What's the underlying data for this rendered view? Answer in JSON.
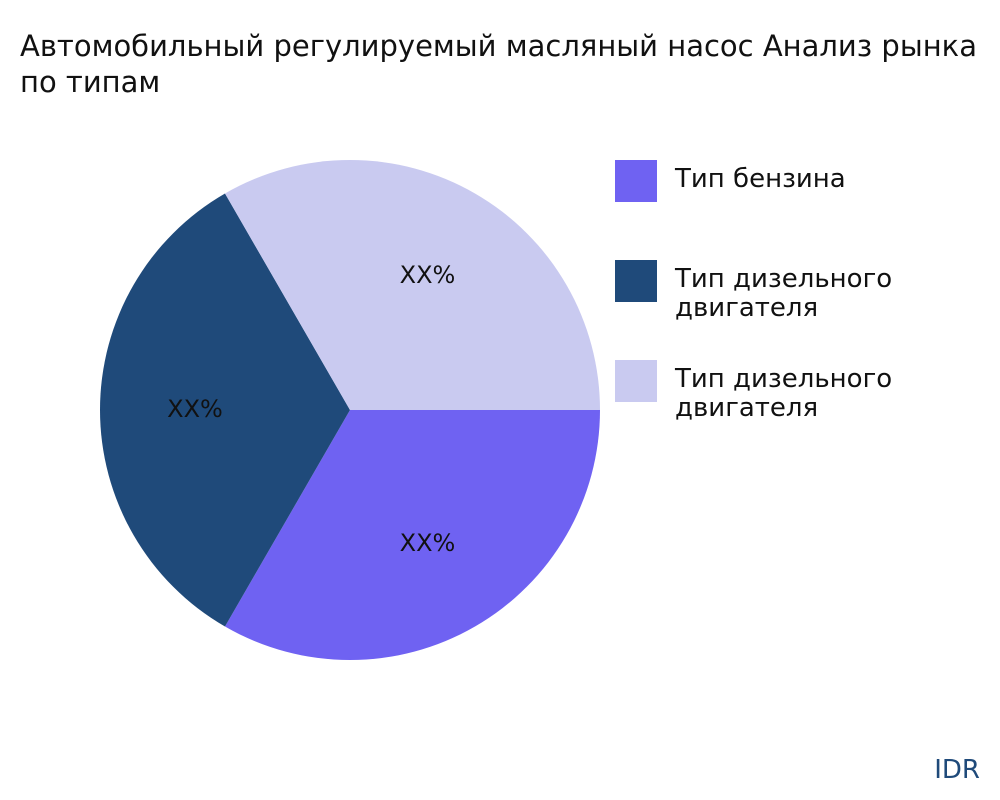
{
  "chart_data": {
    "type": "pie",
    "title": "Автомобильный регулируемый масляный насос Анализ рынка по типам",
    "series": [
      {
        "name": "Тип бензина",
        "color": "#6f62f2",
        "values": [
          33.33
        ],
        "value_labels": [
          "XX%"
        ]
      },
      {
        "name": "Тип дизельного двигателя",
        "color": "#1f4a7a",
        "values": [
          33.33
        ],
        "value_labels": [
          "XX%"
        ]
      },
      {
        "name": "Тип дизельного двигателя",
        "color": "#c9caf0",
        "values": [
          33.33
        ],
        "value_labels": [
          "XX%"
        ]
      }
    ],
    "legend": "right",
    "watermark": "IDR"
  }
}
